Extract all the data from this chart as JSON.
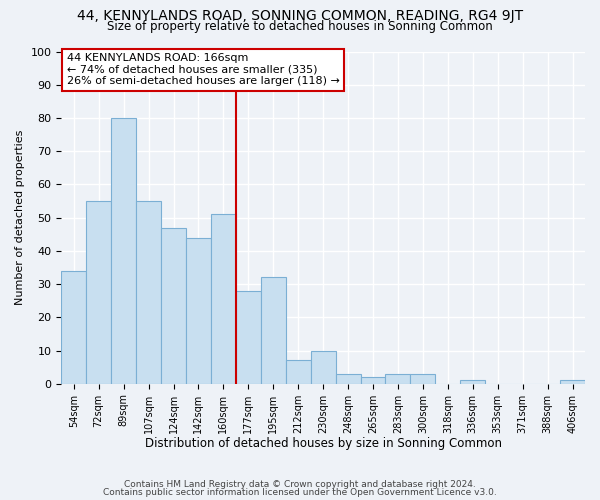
{
  "title": "44, KENNYLANDS ROAD, SONNING COMMON, READING, RG4 9JT",
  "subtitle": "Size of property relative to detached houses in Sonning Common",
  "xlabel": "Distribution of detached houses by size in Sonning Common",
  "ylabel": "Number of detached properties",
  "bar_labels": [
    "54sqm",
    "72sqm",
    "89sqm",
    "107sqm",
    "124sqm",
    "142sqm",
    "160sqm",
    "177sqm",
    "195sqm",
    "212sqm",
    "230sqm",
    "248sqm",
    "265sqm",
    "283sqm",
    "300sqm",
    "318sqm",
    "336sqm",
    "353sqm",
    "371sqm",
    "388sqm",
    "406sqm"
  ],
  "bar_values": [
    34,
    55,
    80,
    55,
    47,
    44,
    51,
    28,
    32,
    7,
    10,
    3,
    2,
    3,
    3,
    0,
    1,
    0,
    0,
    0,
    1
  ],
  "bar_color": "#c8dff0",
  "bar_edge_color": "#7bafd4",
  "marker_index": 6.5,
  "ylim": [
    0,
    100
  ],
  "annotation_title": "44 KENNYLANDS ROAD: 166sqm",
  "annotation_line1": "← 74% of detached houses are smaller (335)",
  "annotation_line2": "26% of semi-detached houses are larger (118) →",
  "vline_color": "#cc0000",
  "annotation_box_edge": "#cc0000",
  "footer1": "Contains HM Land Registry data © Crown copyright and database right 2024.",
  "footer2": "Contains public sector information licensed under the Open Government Licence v3.0.",
  "background_color": "#eef2f7",
  "grid_color": "#ffffff"
}
